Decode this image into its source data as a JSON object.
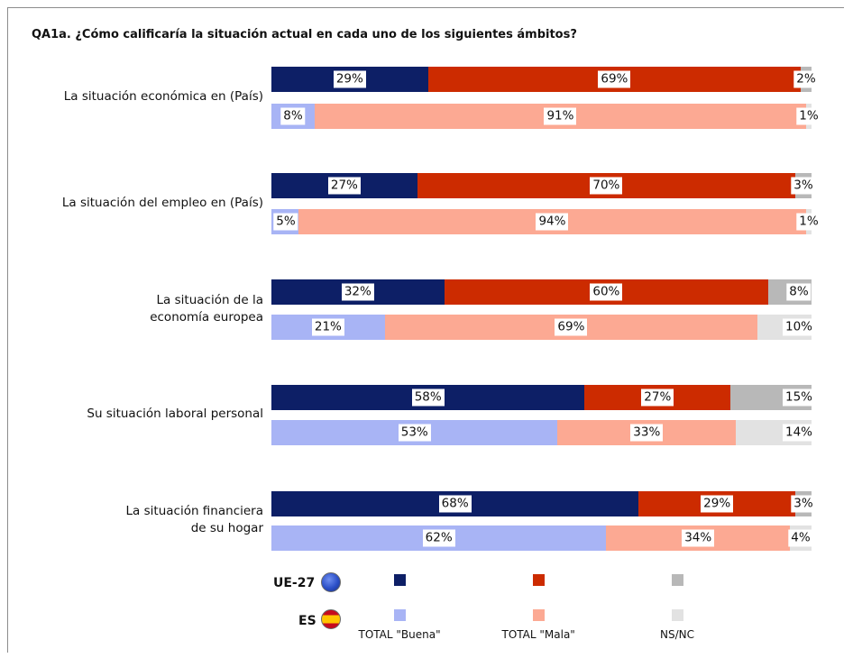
{
  "title": "QA1a. ¿Cómo calificaría la situación actual en cada uno de los siguientes ámbitos?",
  "colors": {
    "ue_buena": "#0d1f66",
    "ue_mala": "#cc2b00",
    "ue_nsnc": "#b8b8b8",
    "es_buena": "#a8b4f5",
    "es_mala": "#fca993",
    "es_nsnc": "#e2e2e2"
  },
  "chart_data": {
    "type": "bar",
    "orientation": "horizontal-stacked-100",
    "title": "QA1a. ¿Cómo calificaría la situación actual en cada uno de los siguientes ámbitos?",
    "categories": [
      [
        "La situación económica en (País)"
      ],
      [
        "La situación del empleo en (País)"
      ],
      [
        "La situación de la",
        "economía europea"
      ],
      [
        "Su situación laboral personal"
      ],
      [
        "La situación financiera",
        "de su hogar"
      ]
    ],
    "groups": [
      {
        "name": "UE-27",
        "buena": [
          29,
          27,
          32,
          58,
          68
        ],
        "mala": [
          69,
          70,
          60,
          27,
          29
        ],
        "nsnc": [
          2,
          3,
          8,
          15,
          3
        ]
      },
      {
        "name": "ES",
        "buena": [
          8,
          5,
          21,
          53,
          62
        ],
        "mala": [
          91,
          94,
          69,
          33,
          34
        ],
        "nsnc": [
          1,
          1,
          10,
          14,
          4
        ]
      }
    ],
    "legend_labels": [
      "TOTAL \"Buena\"",
      "TOTAL \"Mala\"",
      "NS/NC"
    ],
    "xlim": [
      0,
      100
    ]
  }
}
